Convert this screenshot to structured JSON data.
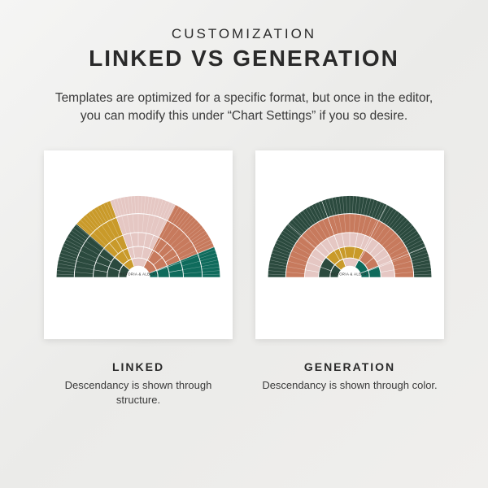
{
  "header": {
    "eyebrow": "CUSTOMIZATION",
    "title": "LINKED VS GENERATION",
    "subtitle": "Templates are optimized for a specific format, but once in the editor, you can modify this under “Chart Settings” if you so desire."
  },
  "palette": {
    "dark_green": "#2b4a3e",
    "mustard": "#c99a2a",
    "blush": "#e5c7c3",
    "terracotta": "#c77a5d",
    "teal": "#0f6b5c",
    "divider": "#ffffff",
    "card_bg": "#ffffff",
    "page_bg": "#f1f0ee",
    "text": "#2a2a2a"
  },
  "fan": {
    "center_label": "VICTORIA & ALBERT",
    "radii": [
      14,
      24,
      38,
      55,
      78,
      100
    ],
    "segments": [
      {
        "start": 180,
        "end": 221,
        "color_key": "dark_green"
      },
      {
        "start": 221,
        "end": 250,
        "color_key": "mustard"
      },
      {
        "start": 250,
        "end": 297,
        "color_key": "blush"
      },
      {
        "start": 297,
        "end": 338,
        "color_key": "terracotta"
      },
      {
        "start": 338,
        "end": 360,
        "color_key": "teal"
      }
    ],
    "generation_ring_colors": [
      "teal",
      "mustard",
      "blush",
      "terracotta",
      "dark_green"
    ],
    "spoke_counts": [
      9,
      18,
      36,
      72
    ]
  },
  "cards": {
    "left": {
      "mode": "linked",
      "title": "LINKED",
      "subtitle": "Descendancy is shown through structure."
    },
    "right": {
      "mode": "generation",
      "title": "GENERATION",
      "subtitle": "Descendancy is shown through color."
    }
  }
}
